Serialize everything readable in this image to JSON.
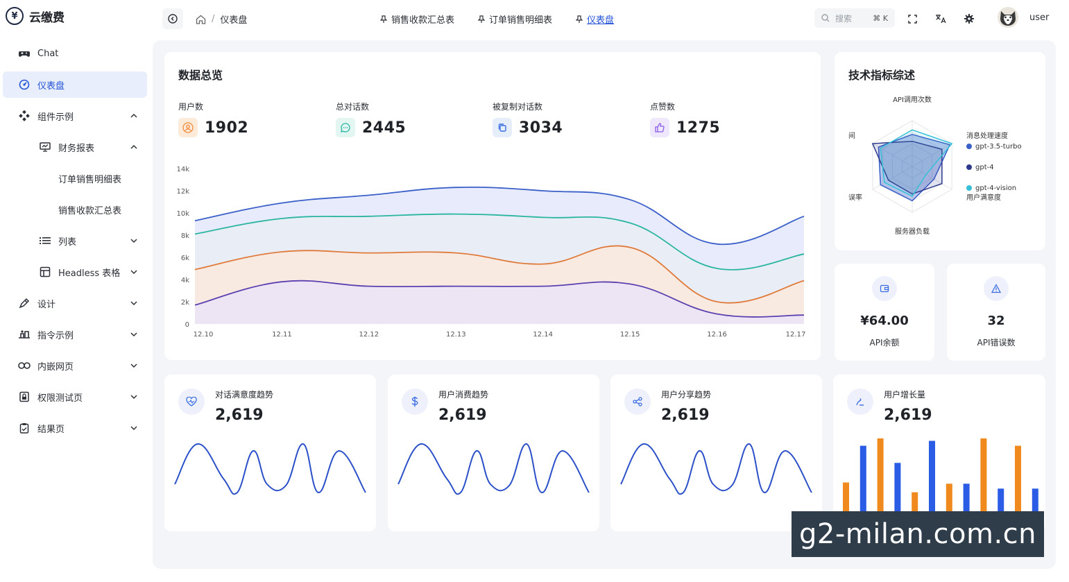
{
  "app": {
    "name": "云缴费"
  },
  "sidebar": {
    "items": [
      {
        "label": "Chat",
        "icon": "gamepad-icon"
      },
      {
        "label": "仪表盘",
        "icon": "gauge-icon",
        "active": true
      },
      {
        "label": "组件示例",
        "icon": "components-icon"
      },
      {
        "label": "财务报表",
        "icon": "monitor-icon"
      },
      {
        "label": "订单销售明细表"
      },
      {
        "label": "销售收款汇总表"
      },
      {
        "label": "列表",
        "icon": "list-icon"
      },
      {
        "label": "Headless 表格",
        "icon": "table-icon"
      },
      {
        "label": "设计",
        "icon": "design-icon"
      },
      {
        "label": "指令示例",
        "icon": "command-icon"
      },
      {
        "label": "内嵌网页",
        "icon": "link-icon"
      },
      {
        "label": "权限测试页",
        "icon": "lock-icon"
      },
      {
        "label": "结果页",
        "icon": "clipboard-icon"
      }
    ]
  },
  "topbar": {
    "breadcrumb": "仪表盘",
    "tabs": [
      {
        "label": "销售收款汇总表"
      },
      {
        "label": "订单销售明细表"
      },
      {
        "label": "仪表盘",
        "active": true
      }
    ],
    "search_placeholder": "搜索",
    "search_shortcut": "⌘ K",
    "user": "user"
  },
  "overview": {
    "title": "数据总览",
    "stats": [
      {
        "label": "用户数",
        "value": "1902",
        "color": "#f08a3c"
      },
      {
        "label": "总对话数",
        "value": "2445",
        "color": "#2ab5a0"
      },
      {
        "label": "被复制对话数",
        "value": "3034",
        "color": "#3a6ee0"
      },
      {
        "label": "点赞数",
        "value": "1275",
        "color": "#8a5ce6"
      }
    ]
  },
  "chart_data": [
    {
      "type": "area",
      "x": [
        "12.10",
        "12.11",
        "12.12",
        "12.13",
        "12.14",
        "12.15",
        "12.16",
        "12.17"
      ],
      "ylim": [
        0,
        14000
      ],
      "yticks": [
        "0",
        "2k",
        "4k",
        "6k",
        "8k",
        "10k",
        "12k",
        "14k"
      ],
      "series": [
        {
          "values": [
            9300,
            10900,
            11600,
            12300,
            12000,
            11200,
            7200,
            9700
          ],
          "color": "#3a5fc8",
          "fill": "#e3e8fb"
        },
        {
          "values": [
            8100,
            9500,
            9700,
            9900,
            9600,
            9100,
            5000,
            6300
          ],
          "color": "#2ab5a0",
          "fill": "#e9eef5"
        },
        {
          "values": [
            4900,
            6500,
            6400,
            6400,
            5400,
            6900,
            2000,
            3900
          ],
          "color": "#e07a3a",
          "fill": "#fbe9dd"
        },
        {
          "values": [
            1700,
            3800,
            3400,
            3400,
            3400,
            3600,
            900,
            800
          ],
          "color": "#5a3fb0",
          "fill": "#ece4f7"
        }
      ]
    },
    {
      "type": "radar",
      "title": "技术指标综述",
      "axes": [
        "API调用次数",
        "消息处理速度",
        "用户满意度",
        "服务器负载",
        "错误率",
        "响应时间"
      ],
      "axis_labels_shown": [
        "API调用次数",
        "消息处理速度",
        "用户满意度",
        "服务器负载",
        "误率",
        "间"
      ],
      "series": [
        {
          "name": "gpt-3.5-turbo",
          "color": "#3a5fc8"
        },
        {
          "name": "gpt-4",
          "color": "#2e3a8c"
        },
        {
          "name": "gpt-4-vision",
          "color": "#35c0d8"
        }
      ]
    },
    {
      "type": "line",
      "title": "对话满意度趋势",
      "value": "2,619"
    },
    {
      "type": "line",
      "title": "用户消费趋势",
      "value": "2,619"
    },
    {
      "type": "line",
      "title": "用户分享趋势",
      "value": "2,619"
    },
    {
      "type": "bar",
      "title": "用户增长量",
      "value": "2,619",
      "values": [
        0.32,
        0.62,
        0.68,
        0.48,
        0.24,
        0.66,
        0.31,
        0.31,
        0.68,
        0.27,
        0.62,
        0.27
      ],
      "colors": [
        "#f08a1e",
        "#2a5ce6",
        "#f08a1e",
        "#2a5ce6",
        "#f08a1e",
        "#2a5ce6",
        "#f08a1e",
        "#2a5ce6",
        "#f08a1e",
        "#2a5ce6",
        "#f08a1e",
        "#2a5ce6"
      ]
    }
  ],
  "api": {
    "balance": {
      "value": "¥64.00",
      "label": "API余额"
    },
    "errors": {
      "value": "32",
      "label": "API错误数"
    }
  },
  "watermark": "g2-milan.com.cn"
}
